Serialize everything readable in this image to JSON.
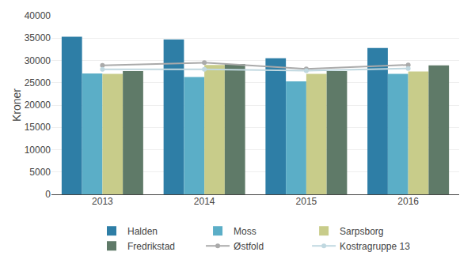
{
  "chart_data": {
    "type": "bar",
    "categories": [
      "2013",
      "2014",
      "2015",
      "2016"
    ],
    "ylabel": "Kroner",
    "series": [
      {
        "name": "Halden",
        "color": "#2e7ea6",
        "values": [
          35300,
          34700,
          30500,
          32800
        ]
      },
      {
        "name": "Moss",
        "color": "#5baec7",
        "values": [
          27100,
          26300,
          25300,
          27000
        ]
      },
      {
        "name": "Sarpsborg",
        "color": "#c8cc8a",
        "values": [
          27000,
          29000,
          27000,
          27500
        ]
      },
      {
        "name": "Fredrikstad",
        "color": "#5f7a68",
        "values": [
          27600,
          29200,
          27600,
          28900
        ]
      },
      {
        "name": "Østfold",
        "type": "line",
        "marker": "circle",
        "line_style": "solid",
        "color": "#aaaaaa",
        "values": [
          28900,
          29500,
          28100,
          29000
        ]
      },
      {
        "name": "Kostragruppe 13",
        "type": "line",
        "marker": "circle",
        "line_style": "solid",
        "color": "#c0d8e0",
        "values": [
          28000,
          28000,
          27700,
          28200
        ]
      }
    ],
    "ylim": [
      0,
      40000
    ],
    "yticks": [
      0,
      5000,
      10000,
      15000,
      20000,
      25000,
      30000,
      35000,
      40000
    ],
    "grid": true,
    "legend": "bottom"
  }
}
